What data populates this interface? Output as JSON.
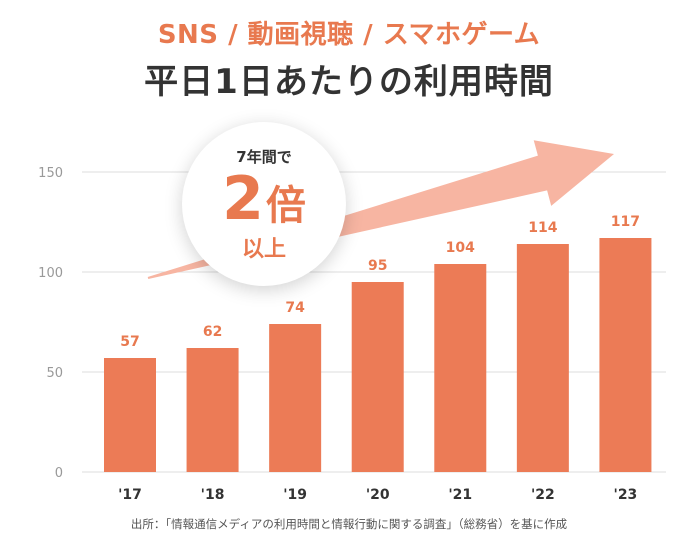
{
  "header": {
    "subtitle": "SNS / 動画視聴 / スマホゲーム",
    "title": "平日1日あたりの利用時間"
  },
  "badge": {
    "top": "7年間で",
    "number": "2",
    "unit": "倍",
    "bottom": "以上"
  },
  "source": "出所：「情報通信メディアの利用時間と情報行動に関する調査」（総務省）を基に作成",
  "colors": {
    "bar": "#ec7b56",
    "accent": "#e8794f",
    "arrow": "#f7b5a2",
    "grid": "#dddddd"
  },
  "chart_data": {
    "type": "bar",
    "categories": [
      "'17",
      "'18",
      "'19",
      "'20",
      "'21",
      "'22",
      "'23"
    ],
    "values": [
      57,
      62,
      74,
      95,
      104,
      114,
      117
    ],
    "title": "平日1日あたりの利用時間",
    "xlabel": "",
    "ylabel": "",
    "ylim": [
      0,
      150
    ],
    "yticks": [
      0,
      50,
      100,
      150
    ],
    "grid": true,
    "data_labels": true
  }
}
